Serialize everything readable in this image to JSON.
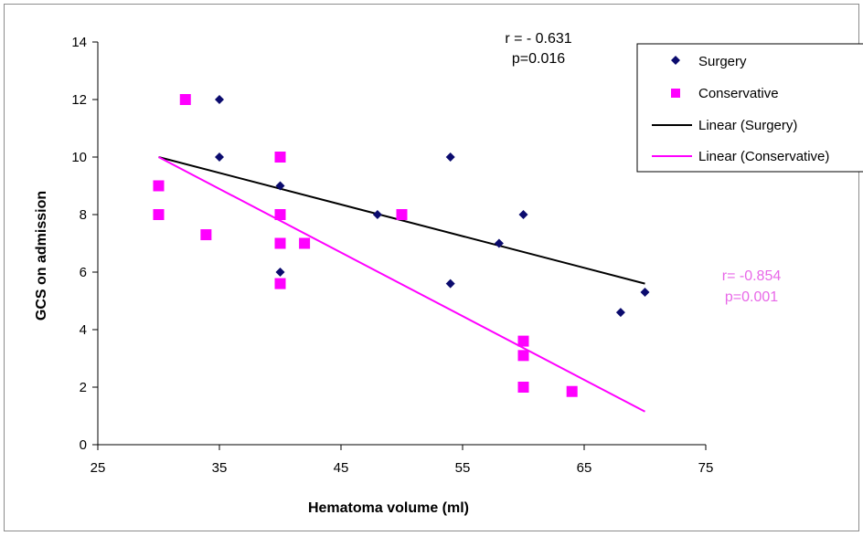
{
  "chart_data": {
    "type": "scatter",
    "title": "",
    "xlabel": "Hematoma volume  (ml)",
    "ylabel": "GCS on  admission",
    "xlim": [
      25,
      75
    ],
    "ylim": [
      0,
      14
    ],
    "xticks": [
      25,
      35,
      45,
      55,
      65,
      75
    ],
    "yticks": [
      0,
      2,
      4,
      6,
      8,
      10,
      12,
      14
    ],
    "grid": false,
    "legend_position": "top-right",
    "series": [
      {
        "name": "Surgery",
        "marker": "diamond",
        "color": "#0b0b6e",
        "points": [
          [
            35,
            12
          ],
          [
            35,
            10
          ],
          [
            40,
            9
          ],
          [
            40,
            6
          ],
          [
            48,
            8
          ],
          [
            54,
            10
          ],
          [
            54,
            5.6
          ],
          [
            58,
            7
          ],
          [
            60,
            8
          ],
          [
            68,
            4.6
          ],
          [
            70,
            5.3
          ]
        ]
      },
      {
        "name": "Conservative",
        "marker": "square",
        "color": "#ff00ff",
        "points": [
          [
            30,
            9
          ],
          [
            30,
            8
          ],
          [
            32.2,
            12
          ],
          [
            33.9,
            7.3
          ],
          [
            40,
            10
          ],
          [
            40,
            8
          ],
          [
            40,
            7
          ],
          [
            40,
            5.6
          ],
          [
            42,
            7
          ],
          [
            50,
            8
          ],
          [
            60,
            3.6
          ],
          [
            60,
            3.1
          ],
          [
            60,
            2
          ],
          [
            64,
            1.85
          ]
        ]
      }
    ],
    "trendlines": [
      {
        "name": "Linear (Surgery)",
        "color": "#000000",
        "from": [
          30,
          10
        ],
        "to": [
          70,
          5.6
        ]
      },
      {
        "name": "Linear (Conservative)",
        "color": "#ff00ff",
        "from": [
          30,
          10
        ],
        "to": [
          70,
          1.15
        ]
      }
    ],
    "annotations": [
      {
        "lines": [
          "r = - 0.631",
          "p=0.016"
        ],
        "color": "#000000"
      },
      {
        "lines": [
          "r= -0.854",
          "p=0.001"
        ],
        "color": "#e868e8"
      }
    ]
  }
}
